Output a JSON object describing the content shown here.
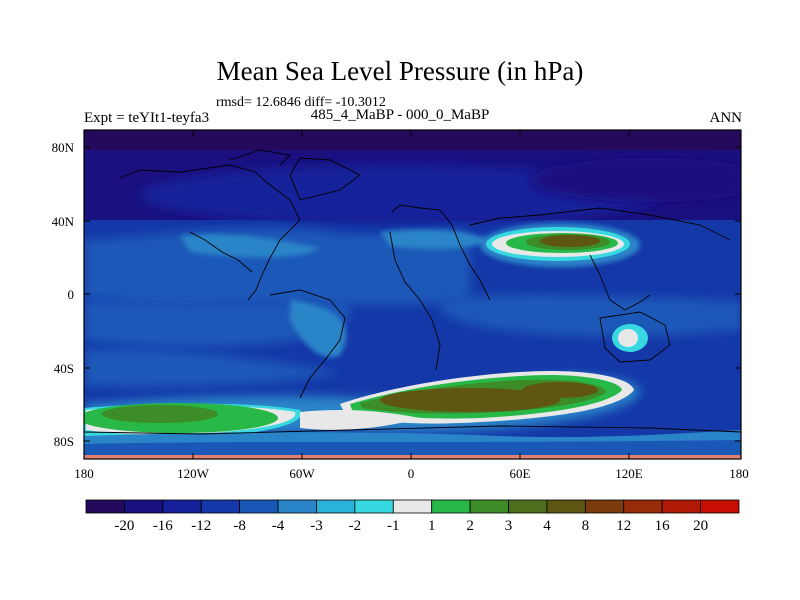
{
  "title": "Mean Sea Level Pressure (in hPa)",
  "stats": "rmsd= 12.6846 diff= -10.3012",
  "subtitle": "485_4_MaBP - 000_0_MaBP",
  "expt": "Expt = teYIt1-teyfa3",
  "season": "ANN",
  "y_labels": [
    "80N",
    "40N",
    "0",
    "40S",
    "80S"
  ],
  "x_labels": [
    "180",
    "120W",
    "60W",
    "0",
    "60E",
    "120E",
    "180"
  ],
  "colorbar": {
    "labels": [
      "-20",
      "-16",
      "-12",
      "-8",
      "-4",
      "-3",
      "-2",
      "-1",
      "1",
      "2",
      "3",
      "4",
      "8",
      "12",
      "16",
      "20"
    ],
    "colors": [
      "#230a5c",
      "#1a1080",
      "#16209a",
      "#1438a8",
      "#1a58b8",
      "#2a84c8",
      "#2ab2d8",
      "#38d8e0",
      "#e8e8e8",
      "#28b848",
      "#3c8c28",
      "#4e6e1e",
      "#5e5612",
      "#7a3c0c",
      "#982c0a",
      "#b01a06",
      "#c80e04"
    ]
  }
}
